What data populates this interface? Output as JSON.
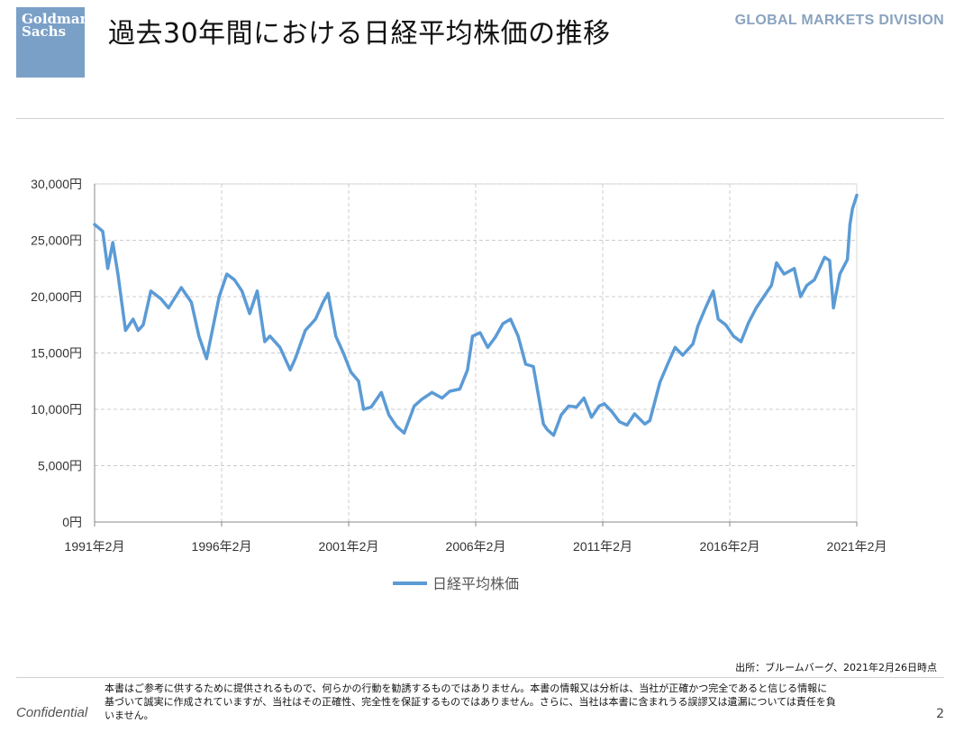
{
  "header": {
    "logo_line1": "Goldman",
    "logo_line2": "Sachs",
    "title": "過去30年間における日経平均株価の推移",
    "division": "GLOBAL MARKETS DIVISION"
  },
  "chart_data": {
    "type": "line",
    "legend_position": "bottom",
    "grid": true,
    "y_ticks": [
      "0円",
      "5,000円",
      "10,000円",
      "15,000円",
      "20,000円",
      "25,000円",
      "30,000円"
    ],
    "x_ticks": [
      "1991年2月",
      "1996年2月",
      "2001年2月",
      "2006年2月",
      "2011年2月",
      "2016年2月",
      "2021年2月"
    ],
    "xlim": [
      1991.08,
      2021.17
    ],
    "ylim": [
      0,
      30000
    ],
    "colors": {
      "series": "#5b9bd5",
      "grid": "#cccccc"
    },
    "series": [
      {
        "name": "日経平均株価",
        "x": [
          1991.08,
          1991.4,
          1991.6,
          1991.8,
          1992.0,
          1992.3,
          1992.6,
          1992.8,
          1993.0,
          1993.3,
          1993.7,
          1994.0,
          1994.5,
          1994.9,
          1995.2,
          1995.5,
          1995.8,
          1996.0,
          1996.3,
          1996.6,
          1996.9,
          1997.2,
          1997.5,
          1997.8,
          1998.0,
          1998.4,
          1998.8,
          1999.0,
          1999.4,
          1999.8,
          2000.1,
          2000.3,
          2000.6,
          2000.9,
          2001.2,
          2001.5,
          2001.7,
          2002.0,
          2002.4,
          2002.7,
          2003.0,
          2003.3,
          2003.7,
          2004.0,
          2004.4,
          2004.8,
          2005.1,
          2005.5,
          2005.8,
          2006.0,
          2006.3,
          2006.6,
          2006.9,
          2007.2,
          2007.5,
          2007.8,
          2008.1,
          2008.4,
          2008.8,
          2008.95,
          2009.2,
          2009.5,
          2009.8,
          2010.1,
          2010.4,
          2010.7,
          2011.0,
          2011.2,
          2011.5,
          2011.8,
          2012.1,
          2012.4,
          2012.8,
          2013.0,
          2013.4,
          2013.7,
          2014.0,
          2014.3,
          2014.7,
          2014.9,
          2015.2,
          2015.5,
          2015.7,
          2016.0,
          2016.3,
          2016.6,
          2016.9,
          2017.2,
          2017.5,
          2017.8,
          2018.0,
          2018.3,
          2018.7,
          2018.95,
          2019.2,
          2019.5,
          2019.9,
          2020.1,
          2020.25,
          2020.5,
          2020.8,
          2020.9,
          2021.0,
          2021.17
        ],
        "values": [
          26400,
          25800,
          22500,
          24800,
          22000,
          17000,
          18000,
          17000,
          17500,
          20500,
          19800,
          19000,
          20800,
          19500,
          16500,
          14500,
          17800,
          20000,
          22000,
          21500,
          20500,
          18500,
          20500,
          16000,
          16500,
          15500,
          13500,
          14500,
          17000,
          18000,
          19500,
          20300,
          16500,
          15000,
          13300,
          12500,
          10000,
          10200,
          11500,
          9500,
          8500,
          7900,
          10300,
          10900,
          11500,
          11000,
          11600,
          11800,
          13500,
          16500,
          16800,
          15500,
          16400,
          17600,
          18000,
          16500,
          14000,
          13800,
          8700,
          8200,
          7700,
          9500,
          10300,
          10200,
          11000,
          9300,
          10300,
          10500,
          9800,
          8900,
          8600,
          9600,
          8700,
          9000,
          12400,
          14000,
          15500,
          14800,
          15800,
          17400,
          19000,
          20500,
          18000,
          17500,
          16500,
          16000,
          17700,
          19000,
          20000,
          21000,
          23000,
          22000,
          22500,
          20000,
          21000,
          21500,
          23500,
          23200,
          19000,
          22000,
          23300,
          26400,
          27800,
          29000
        ]
      }
    ]
  },
  "footer": {
    "source": "出所：ブルームバーグ、2021年2月26日時点",
    "confidential": "Confidential",
    "disclaimer_line1": "本書はご参考に供するために提供されるもので、何らかの行動を勧誘するものではありません。本書の情報又は分析は、当社が正確かつ完全であると信じる情報に",
    "disclaimer_line2": "基づいて誠実に作成されていますが、当社はその正確性、完全性を保証するものではありません。さらに、当社は本書に含まれうる誤謬又は遺漏については責任を負",
    "disclaimer_line3": "いません。",
    "page": "2"
  }
}
